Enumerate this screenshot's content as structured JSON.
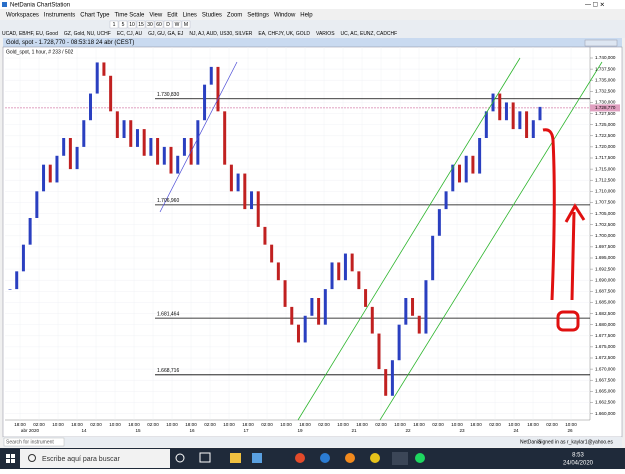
{
  "window": {
    "title": "NetDania ChartStation"
  },
  "menu": [
    "Workspaces",
    "Instruments",
    "Chart Type",
    "Time Scale",
    "View",
    "Edit",
    "Lines",
    "Studies",
    "Zoom",
    "Settings",
    "Window",
    "Help"
  ],
  "toolbar": {
    "buttons": [
      "1",
      "5",
      "10",
      "15",
      "30",
      "60",
      "D",
      "W",
      "M"
    ],
    "groups": [
      "UCAD, EB/HF, EU, Good",
      "GZ, Gold, NU, UCHF",
      "EC, CJ, AU",
      "GJ, GU, GA, EJ",
      "NJ, AJ, AUD, US30, SILVER",
      "EA, CHFJY, UK, GOLD",
      "VARIOS",
      "UC, AC, EUNZ, CADCHF"
    ]
  },
  "chart_window": {
    "title": "Gold, spot - 1.728,770 - 08:53:18 24 abr (CEST)",
    "subtitle": "Gold_spot, 1 hour, # 233 / 502",
    "current": {
      "value": 1728.77,
      "label": "1.728,770"
    },
    "ylim": [
      1659,
      1740
    ],
    "yticks": [
      {
        "value": 1740,
        "label": "1.740,000"
      },
      {
        "value": 1737.5,
        "label": "1.737,500"
      },
      {
        "value": 1735,
        "label": "1.735,000"
      },
      {
        "value": 1732.5,
        "label": "1.732,500"
      },
      {
        "value": 1730,
        "label": "1.730,000"
      },
      {
        "value": 1727.5,
        "label": "1.727,500"
      },
      {
        "value": 1725,
        "label": "1.725,000"
      },
      {
        "value": 1722.5,
        "label": "1.722,500"
      },
      {
        "value": 1720,
        "label": "1.720,000"
      },
      {
        "value": 1717.5,
        "label": "1.717,500"
      },
      {
        "value": 1715,
        "label": "1.715,000"
      },
      {
        "value": 1712.5,
        "label": "1.712,500"
      },
      {
        "value": 1710,
        "label": "1.710,000"
      },
      {
        "value": 1707.5,
        "label": "1.707,500"
      },
      {
        "value": 1705,
        "label": "1.705,000"
      },
      {
        "value": 1702.5,
        "label": "1.702,500"
      },
      {
        "value": 1700,
        "label": "1.700,000"
      },
      {
        "value": 1697.5,
        "label": "1.697,500"
      },
      {
        "value": 1695,
        "label": "1.695,000"
      },
      {
        "value": 1692.5,
        "label": "1.692,500"
      },
      {
        "value": 1690,
        "label": "1.690,000"
      },
      {
        "value": 1687.5,
        "label": "1.687,500"
      },
      {
        "value": 1685,
        "label": "1.685,000"
      },
      {
        "value": 1682.5,
        "label": "1.682,500"
      },
      {
        "value": 1680,
        "label": "1.680,000"
      },
      {
        "value": 1677.5,
        "label": "1.677,500"
      },
      {
        "value": 1675,
        "label": "1.675,000"
      },
      {
        "value": 1672.5,
        "label": "1.672,500"
      },
      {
        "value": 1670,
        "label": "1.670,000"
      },
      {
        "value": 1667.5,
        "label": "1.667,500"
      },
      {
        "value": 1665,
        "label": "1.665,000"
      },
      {
        "value": 1662.5,
        "label": "1.662,500"
      },
      {
        "value": 1660,
        "label": "1.660,000"
      }
    ],
    "levels": [
      {
        "value": 1730.83,
        "label": "1.730,830"
      },
      {
        "value": 1706.96,
        "label": "1.706,960"
      },
      {
        "value": 1681.464,
        "label": "1.681,464"
      },
      {
        "value": 1668.716,
        "label": "1.668,716"
      }
    ],
    "closes": [
      1688,
      1692,
      1698,
      1704,
      1710,
      1716,
      1712,
      1718,
      1722,
      1715,
      1720,
      1726,
      1732,
      1739,
      1736,
      1728,
      1722,
      1726,
      1720,
      1724,
      1718,
      1722,
      1716,
      1720,
      1714,
      1718,
      1722,
      1716,
      1726,
      1734,
      1738,
      1728,
      1716,
      1710,
      1714,
      1706,
      1710,
      1702,
      1698,
      1694,
      1690,
      1684,
      1680,
      1676,
      1682,
      1686,
      1680,
      1688,
      1694,
      1690,
      1696,
      1692,
      1688,
      1684,
      1678,
      1670,
      1664,
      1672,
      1680,
      1686,
      1682,
      1678,
      1690,
      1700,
      1706,
      1710,
      1716,
      1712,
      1718,
      1714,
      1722,
      1728,
      1732,
      1726,
      1730,
      1724,
      1728,
      1722,
      1726,
      1729
    ],
    "dates": [
      "abr 2020",
      "14",
      "15",
      "16",
      "17",
      "19",
      "21",
      "22",
      "23",
      "24",
      "26"
    ],
    "times": [
      "18:00",
      "02:00",
      "10:00",
      "18:00",
      "02:00",
      "10:00",
      "18:00",
      "02:00",
      "10:00",
      "18:00",
      "02:00",
      "10:00",
      "18:00",
      "02:00",
      "10:00",
      "18:00",
      "02:00",
      "10:00",
      "18:00",
      "02:00",
      "10:00",
      "18:00",
      "02:00",
      "10:00",
      "18:00",
      "02:00",
      "10:00",
      "18:00",
      "02:00",
      "10:00"
    ]
  },
  "status": {
    "search": "Search for instrument",
    "brand": "NetDania",
    "signed_in": "Signed in as r_kaylar1@yahoo.es"
  },
  "taskbar": {
    "search": "Escribe aquí para buscar",
    "time": "8:53",
    "date": "24/04/2020"
  }
}
